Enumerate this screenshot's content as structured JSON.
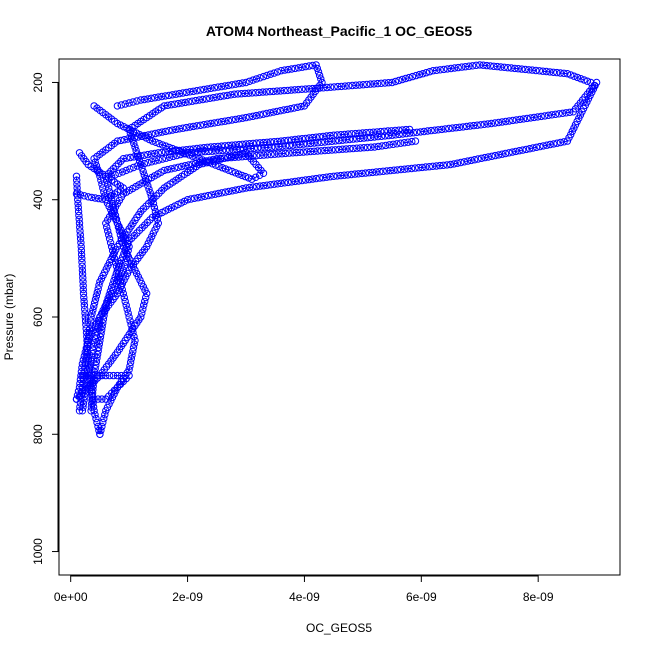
{
  "chart_data": {
    "type": "scatter",
    "title": "ATOM4 Northeast_Pacific_1 OC_GEOS5",
    "xlabel": "OC_GEOS5",
    "ylabel": "Pressure (mbar)",
    "xlim": [
      -2e-10,
      9.4e-09
    ],
    "ylim": [
      1040,
      160
    ],
    "y_reversed": true,
    "grid": false,
    "series_color": "#0000ff",
    "marker": "open-circle",
    "x_ticks": [
      {
        "value": 0,
        "label": "0e+00"
      },
      {
        "value": 2e-09,
        "label": "2e-09"
      },
      {
        "value": 4e-09,
        "label": "4e-09"
      },
      {
        "value": 6e-09,
        "label": "6e-09"
      },
      {
        "value": 8e-09,
        "label": "8e-09"
      }
    ],
    "y_ticks": [
      {
        "value": 200,
        "label": "200"
      },
      {
        "value": 400,
        "label": "400"
      },
      {
        "value": 600,
        "label": "600"
      },
      {
        "value": 800,
        "label": "800"
      },
      {
        "value": 1000,
        "label": "1000"
      }
    ],
    "series": [
      {
        "x": [
          5e-10,
          4.5e-10,
          4e-10,
          3.5e-10,
          3e-10,
          2.8e-10,
          2.5e-10,
          2.2e-10,
          2e-10,
          1.8e-10,
          1.5e-10,
          1.2e-10,
          1e-10
        ],
        "y": [
          800,
          780,
          760,
          720,
          680,
          640,
          600,
          560,
          520,
          480,
          440,
          400,
          360
        ]
      },
      {
        "x": [
          3.5e-10,
          4e-10,
          5e-10,
          6e-10,
          8e-10,
          1e-09,
          1.4e-09,
          2e-09,
          3e-09,
          4.5e-09,
          6.5e-09,
          8.5e-09,
          9e-09,
          8.6e-09,
          7.2e-09,
          5.5e-09,
          3.5e-09,
          2e-09,
          1.2e-09,
          7e-10
        ],
        "y": [
          760,
          700,
          640,
          580,
          520,
          470,
          430,
          400,
          380,
          360,
          340,
          300,
          200,
          250,
          270,
          290,
          310,
          320,
          340,
          360
        ]
      },
      {
        "x": [
          5e-10,
          6e-10,
          8e-10,
          1e-09,
          1.1e-09,
          1e-09,
          9e-10,
          8e-10,
          7e-10,
          6e-10,
          9e-10,
          1.6e-09,
          2.5e-09,
          3.8e-09,
          5.2e-09,
          5.9e-09
        ],
        "y": [
          800,
          760,
          720,
          690,
          640,
          600,
          560,
          520,
          480,
          440,
          390,
          350,
          330,
          320,
          310,
          300
        ]
      },
      {
        "x": [
          1e-10,
          2e-10,
          5e-10,
          8e-10,
          1.2e-09,
          1.3e-09,
          1.1e-09,
          9e-10,
          8e-10,
          7e-10,
          6e-10,
          9e-10,
          1.5e-09,
          2.4e-09,
          3.6e-09,
          4.5e-09,
          5.8e-09
        ],
        "y": [
          740,
          730,
          700,
          660,
          600,
          560,
          520,
          480,
          440,
          400,
          360,
          330,
          320,
          310,
          300,
          290,
          280
        ]
      },
      {
        "x": [
          2e-10,
          3e-10,
          4e-10,
          5e-10,
          7e-10,
          9e-10,
          1e-09,
          8e-10,
          6e-10,
          5e-10,
          4e-10,
          8e-10,
          1.8e-09,
          3e-09,
          4e-09,
          4.3e-09,
          4.2e-09,
          3.6e-09,
          3e-09,
          2.4e-09,
          1.8e-09,
          1.2e-09,
          8e-10
        ],
        "y": [
          760,
          700,
          650,
          600,
          560,
          520,
          480,
          440,
          400,
          360,
          330,
          300,
          280,
          260,
          240,
          200,
          170,
          180,
          200,
          210,
          220,
          230,
          240
        ]
      },
      {
        "x": [
          1.5e-10,
          2e-10,
          2.5e-10,
          3e-10,
          3.5e-10,
          5e-10,
          8e-10,
          1.2e-09,
          1.6e-09,
          2.2e-09,
          3e-09,
          3.3e-09,
          3.1e-09,
          2.2e-09,
          1.4e-09,
          8e-10,
          4e-10
        ],
        "y": [
          760,
          720,
          680,
          640,
          600,
          540,
          480,
          420,
          380,
          340,
          320,
          355,
          365,
          330,
          300,
          270,
          240
        ]
      },
      {
        "x": [
          1e-10,
          1.5e-10,
          2e-10,
          3e-10,
          5e-10,
          8e-10,
          1e-09,
          1.3e-09,
          1.5e-09,
          1.4e-09,
          1.2e-09,
          1e-09,
          1.6e-09,
          2.8e-09,
          4.2e-09,
          5.5e-09,
          6.2e-09,
          7e-09,
          8.5e-09,
          8.9e-09
        ],
        "y": [
          740,
          720,
          680,
          640,
          600,
          560,
          520,
          480,
          440,
          400,
          340,
          280,
          240,
          220,
          210,
          200,
          180,
          170,
          185,
          200
        ]
      },
      {
        "x": [
          2e-10,
          4e-10,
          6e-10,
          8e-10,
          1e-09,
          8e-10,
          6e-10,
          4e-10
        ],
        "y": [
          700,
          700,
          700,
          700,
          700,
          720,
          740,
          740
        ]
      },
      {
        "x": [
          1e-10,
          3e-10,
          6e-10,
          9e-10,
          6e-10,
          3e-10,
          1.5e-10
        ],
        "y": [
          390,
          395,
          400,
          380,
          360,
          340,
          320
        ]
      }
    ]
  }
}
